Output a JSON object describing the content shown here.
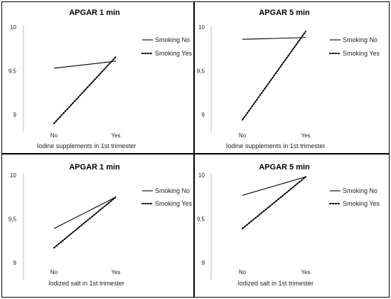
{
  "chart_data": [
    {
      "type": "line",
      "title": "APGAR 1 min",
      "xlabel": "Iodine supplements in 1st trimester",
      "ylabel": "",
      "categories": [
        "No",
        "Yes"
      ],
      "ylim": [
        9,
        10
      ],
      "yticks": [
        "9",
        "9,5",
        "10"
      ],
      "legend_position": "top-right",
      "series": [
        {
          "name": "Smoking No",
          "values": [
            9.53,
            9.61
          ],
          "style": "solid"
        },
        {
          "name": "Smoking Yes",
          "values": [
            8.9,
            9.66
          ],
          "style": "dotted"
        }
      ]
    },
    {
      "type": "line",
      "title": "APGAR 5 min",
      "xlabel": "Iodine supplements in 1st trimester",
      "ylabel": "",
      "categories": [
        "No",
        "Yes"
      ],
      "ylim": [
        9,
        10
      ],
      "yticks": [
        "9",
        "9,5",
        "10"
      ],
      "legend_position": "top-right",
      "series": [
        {
          "name": "Smoking No",
          "values": [
            9.86,
            9.88
          ],
          "style": "solid"
        },
        {
          "name": "Smoking Yes",
          "values": [
            8.94,
            9.95
          ],
          "style": "dotted"
        }
      ]
    },
    {
      "type": "line",
      "title": "APGAR 1 min",
      "xlabel": "Iodized salt in 1st trimester",
      "ylabel": "",
      "categories": [
        "No",
        "Yes"
      ],
      "ylim": [
        9,
        10
      ],
      "yticks": [
        "9",
        "9,5",
        "10"
      ],
      "legend_position": "top-right",
      "series": [
        {
          "name": "Smoking No",
          "values": [
            9.39,
            9.75
          ],
          "style": "solid"
        },
        {
          "name": "Smoking Yes",
          "values": [
            9.17,
            9.75
          ],
          "style": "dotted"
        }
      ]
    },
    {
      "type": "line",
      "title": "APGAR 5 min",
      "xlabel": "Iodized salt in 1st trimester",
      "ylabel": "",
      "categories": [
        "No",
        "Yes"
      ],
      "ylim": [
        9,
        10
      ],
      "yticks": [
        "9",
        "9,5",
        "10"
      ],
      "legend_position": "top-right",
      "series": [
        {
          "name": "Smoking No",
          "values": [
            9.77,
            9.98
          ],
          "style": "solid"
        },
        {
          "name": "Smoking Yes",
          "values": [
            9.39,
            9.98
          ],
          "style": "dotted"
        }
      ]
    }
  ]
}
